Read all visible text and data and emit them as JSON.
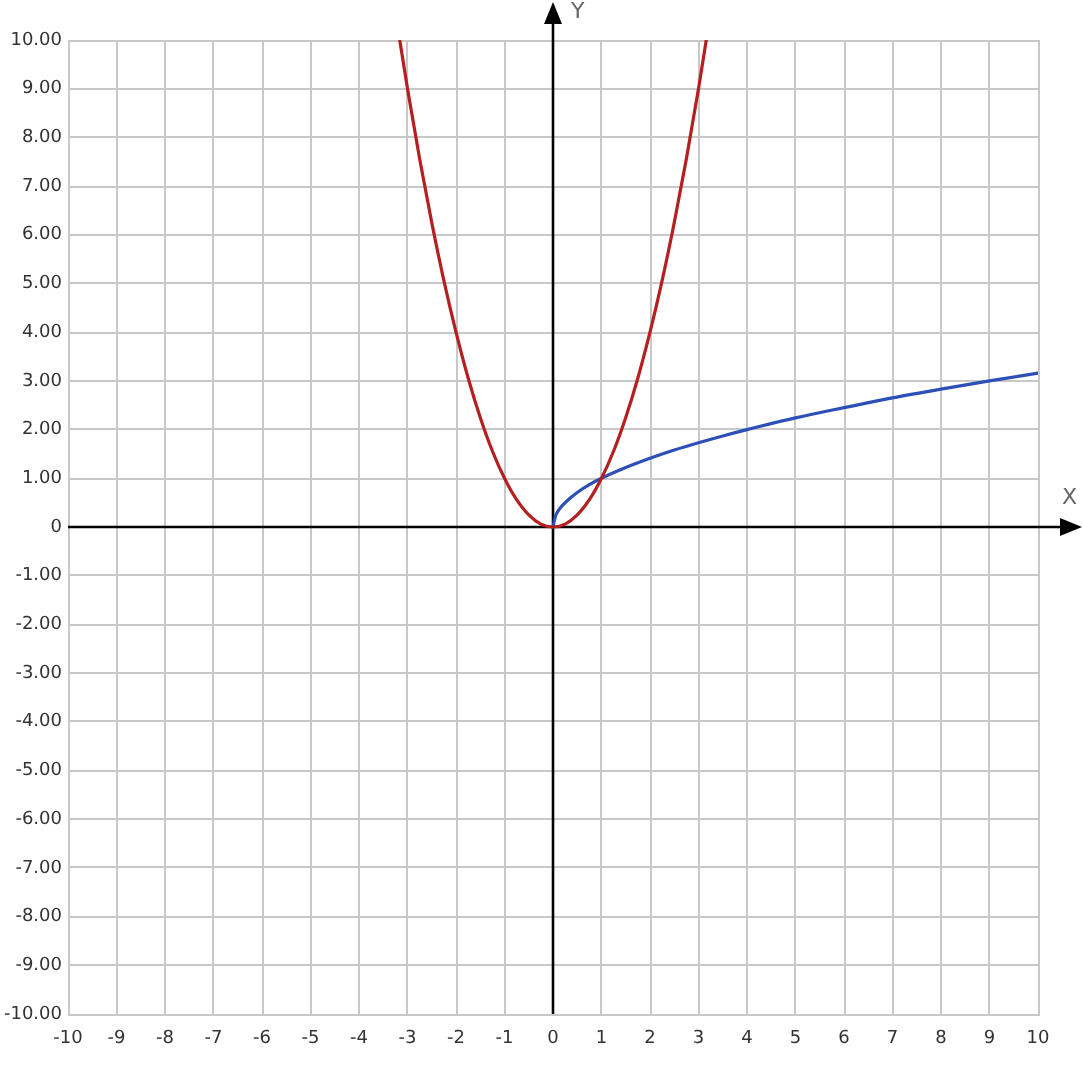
{
  "chart_data": {
    "type": "line",
    "xlabel": "X",
    "ylabel": "Y",
    "xlim": [
      -10,
      10
    ],
    "ylim": [
      -10,
      10
    ],
    "xticks": [
      -10,
      -9,
      -8,
      -7,
      -6,
      -5,
      -4,
      -3,
      -2,
      -1,
      0,
      1,
      2,
      3,
      4,
      5,
      6,
      7,
      8,
      9,
      10
    ],
    "yticks": [
      {
        "value": -10,
        "label": "-10.00"
      },
      {
        "value": -9,
        "label": "-9.00"
      },
      {
        "value": -8,
        "label": "-8.00"
      },
      {
        "value": -7,
        "label": "-7.00"
      },
      {
        "value": -6,
        "label": "-6.00"
      },
      {
        "value": -5,
        "label": "-5.00"
      },
      {
        "value": -4,
        "label": "-4.00"
      },
      {
        "value": -3,
        "label": "-3.00"
      },
      {
        "value": -2,
        "label": "-2.00"
      },
      {
        "value": -1,
        "label": "-1.00"
      },
      0,
      {
        "value": 1,
        "label": "1.00"
      },
      {
        "value": 2,
        "label": "2.00"
      },
      {
        "value": 3,
        "label": "3.00"
      },
      {
        "value": 4,
        "label": "4.00"
      },
      {
        "value": 5,
        "label": "5.00"
      },
      {
        "value": 6,
        "label": "6.00"
      },
      {
        "value": 7,
        "label": "7.00"
      },
      {
        "value": 8,
        "label": "8.00"
      },
      {
        "value": 9,
        "label": "9.00"
      },
      {
        "value": 10,
        "label": "10.00"
      }
    ],
    "grid": true,
    "legend": false,
    "marker": "none",
    "series": [
      {
        "color": "#b41f1f",
        "x": [
          -3.16,
          -3,
          -2.75,
          -2.5,
          -2.25,
          -2,
          -1.75,
          -1.5,
          -1.25,
          -1,
          -0.75,
          -0.5,
          -0.25,
          0,
          0.25,
          0.5,
          0.75,
          1,
          1.25,
          1.5,
          1.75,
          2,
          2.25,
          2.5,
          2.75,
          3,
          3.16
        ],
        "values": [
          10,
          9,
          7.56,
          6.25,
          5.06,
          4,
          3.06,
          2.25,
          1.56,
          1,
          0.56,
          0.25,
          0.06,
          0,
          0.06,
          0.25,
          0.56,
          1,
          1.56,
          2.25,
          3.06,
          4,
          5.06,
          6.25,
          7.56,
          9,
          10
        ]
      },
      {
        "color": "#2c4fb8",
        "x": [
          0,
          0.05,
          0.1,
          0.2,
          0.35,
          0.5,
          0.75,
          1,
          1.5,
          2,
          2.5,
          3,
          3.5,
          4,
          5,
          6,
          7,
          8,
          9,
          10
        ],
        "values": [
          0,
          0.22,
          0.32,
          0.45,
          0.59,
          0.71,
          0.87,
          1,
          1.22,
          1.41,
          1.58,
          1.73,
          1.87,
          2,
          2.24,
          2.45,
          2.65,
          2.83,
          3,
          3.16
        ]
      }
    ]
  }
}
